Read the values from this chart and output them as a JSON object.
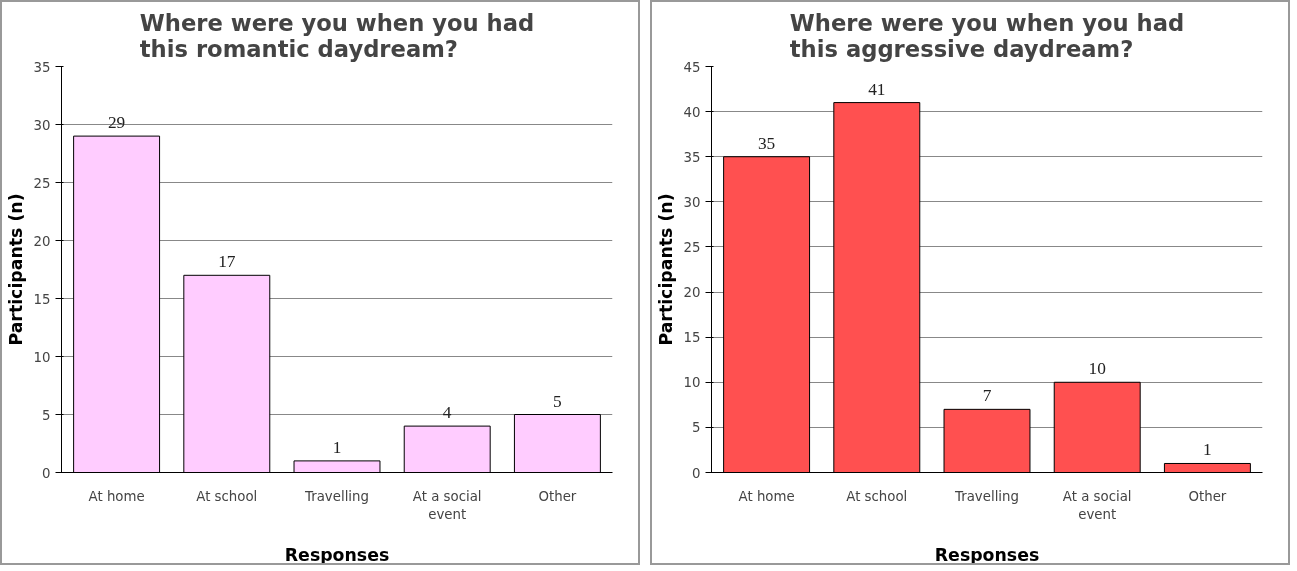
{
  "chart_data": [
    {
      "type": "bar",
      "title": "Where were you when you had this romantic daydream?",
      "xlabel": "Responses",
      "ylabel": "Participants (n)",
      "categories": [
        "At home",
        "At school",
        "Travelling",
        "At a social event",
        "Other"
      ],
      "values": [
        29,
        17,
        1,
        4,
        5
      ],
      "color": "#ffccff",
      "ylim": [
        0,
        35
      ],
      "yticks": [
        0,
        5,
        10,
        15,
        20,
        25,
        30,
        35
      ],
      "grid": "y",
      "data_labels": true
    },
    {
      "type": "bar",
      "title": "Where were you when you had this aggressive daydream?",
      "xlabel": "Responses",
      "ylabel": "Participants (n)",
      "categories": [
        "At home",
        "At school",
        "Travelling",
        "At a social event",
        "Other"
      ],
      "values": [
        35,
        41,
        7,
        10,
        1
      ],
      "color": "#ff5050",
      "ylim": [
        0,
        45
      ],
      "yticks": [
        0,
        5,
        10,
        15,
        20,
        25,
        30,
        35,
        40,
        45
      ],
      "grid": "y",
      "data_labels": true
    }
  ]
}
